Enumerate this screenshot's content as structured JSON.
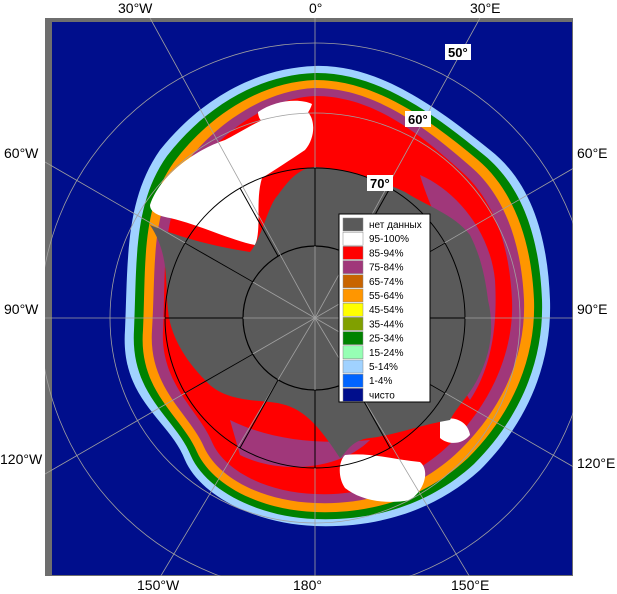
{
  "map": {
    "longitude_labels": {
      "top": [
        "30°W",
        "0°",
        "30°E"
      ],
      "left": [
        "60°W",
        "90°W",
        "120°W"
      ],
      "right": [
        "60°E",
        "90°E",
        "120°E"
      ],
      "bottom": [
        "150°W",
        "180°",
        "150°E"
      ]
    },
    "latitude_labels": [
      "50°",
      "60°",
      "70°"
    ],
    "colors": {
      "ocean": "#000e8c",
      "no_data": "#5a5a5a",
      "frame": "#6e6e6e",
      "grid": "#a0a0a0",
      "c95_100": "#ffffff",
      "c85_94": "#ff0000",
      "c75_84": "#a0377a",
      "c65_74": "#c86400",
      "c55_64": "#ff9600",
      "c45_54": "#ffff00",
      "c35_44": "#80a000",
      "c25_34": "#008200",
      "c15_24": "#96ffb4",
      "c5_14": "#a0d2ff",
      "c1_4": "#0064ff",
      "clear": "#000e8c"
    }
  },
  "legend": {
    "items": [
      {
        "label": "нет данных",
        "color": "#5a5a5a"
      },
      {
        "label": "95-100%",
        "color": "#ffffff"
      },
      {
        "label": "85-94%",
        "color": "#ff0000"
      },
      {
        "label": "75-84%",
        "color": "#a0377a"
      },
      {
        "label": "65-74%",
        "color": "#c86400"
      },
      {
        "label": "55-64%",
        "color": "#ff9600"
      },
      {
        "label": "45-54%",
        "color": "#ffff00"
      },
      {
        "label": "35-44%",
        "color": "#80a000"
      },
      {
        "label": "25-34%",
        "color": "#008200"
      },
      {
        "label": "15-24%",
        "color": "#96ffb4"
      },
      {
        "label": "5-14%",
        "color": "#a0d2ff"
      },
      {
        "label": "1-4%",
        "color": "#0064ff"
      },
      {
        "label": "чисто",
        "color": "#000e8c"
      }
    ]
  }
}
